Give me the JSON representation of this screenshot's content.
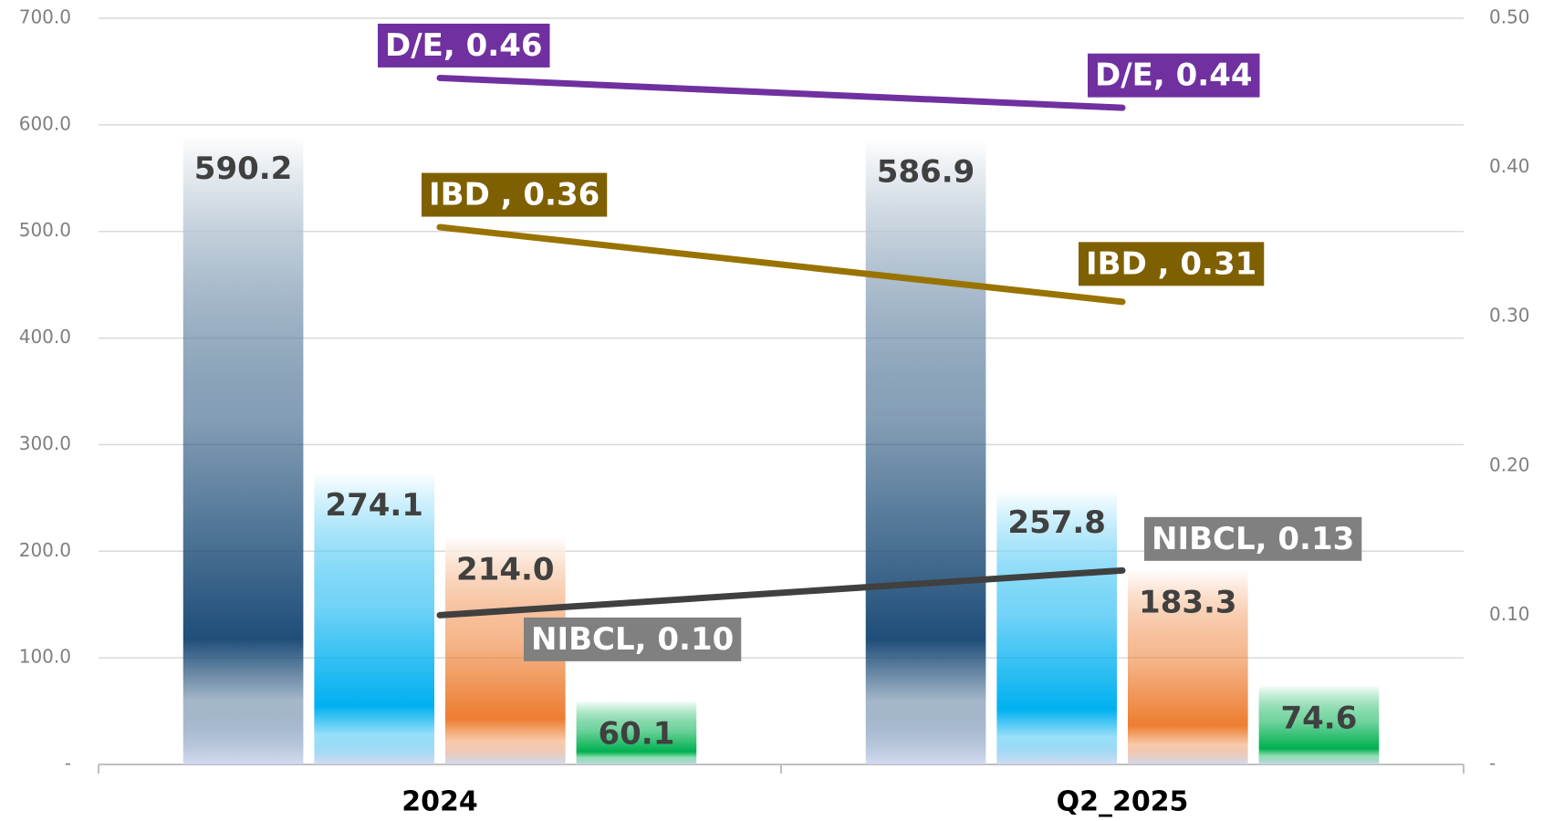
{
  "chart_data": {
    "type": "bar",
    "categories": [
      "2024",
      "Q2_2025"
    ],
    "series": [
      {
        "color": "#1f4e79",
        "values": [
          590.2,
          586.9
        ]
      },
      {
        "color": "#00b0f0",
        "values": [
          274.1,
          257.8
        ]
      },
      {
        "color": "#ed7d31",
        "values": [
          214.0,
          183.3
        ],
        "value_labels": [
          "214.0",
          "183.3"
        ]
      },
      {
        "color": "#00b050",
        "values": [
          60.1,
          74.6
        ]
      },
      {
        "name": "D/E",
        "type": "line",
        "axis": "y2",
        "color": "#7030a0",
        "values": [
          0.46,
          0.44
        ],
        "value_labels": [
          "D/E,  0.46",
          "D/E,  0.44"
        ]
      },
      {
        "name": "IBD",
        "type": "line",
        "axis": "y2",
        "color": "#997300",
        "label_color": "#7f6000",
        "values": [
          0.36,
          0.31
        ],
        "value_labels": [
          "IBD ,  0.36",
          "IBD ,  0.31"
        ]
      },
      {
        "name": "NIBCL",
        "type": "line",
        "axis": "y2",
        "color": "#404040",
        "label_color": "#808080",
        "values": [
          0.1,
          0.13
        ],
        "value_labels": [
          "NIBCL,  0.10",
          "NIBCL,  0.13"
        ]
      }
    ],
    "ylim": [
      0,
      700
    ],
    "yticks": [
      {
        "value": 0,
        "label": "-"
      },
      {
        "value": 100,
        "label": "100.0"
      },
      {
        "value": 200,
        "label": "200.0"
      },
      {
        "value": 300,
        "label": "300.0"
      },
      {
        "value": 400,
        "label": "400.0"
      },
      {
        "value": 500,
        "label": "500.0"
      },
      {
        "value": 600,
        "label": "600.0"
      },
      {
        "value": 700,
        "label": "700.0"
      }
    ],
    "y2lim": [
      0,
      0.5
    ],
    "y2ticks": [
      {
        "value": 0,
        "label": "-"
      },
      {
        "value": 0.1,
        "label": "0.10"
      },
      {
        "value": 0.2,
        "label": "0.20"
      },
      {
        "value": 0.3,
        "label": "0.30"
      },
      {
        "value": 0.4,
        "label": "0.40"
      },
      {
        "value": 0.5,
        "label": "0.50"
      }
    ],
    "grid": true
  }
}
